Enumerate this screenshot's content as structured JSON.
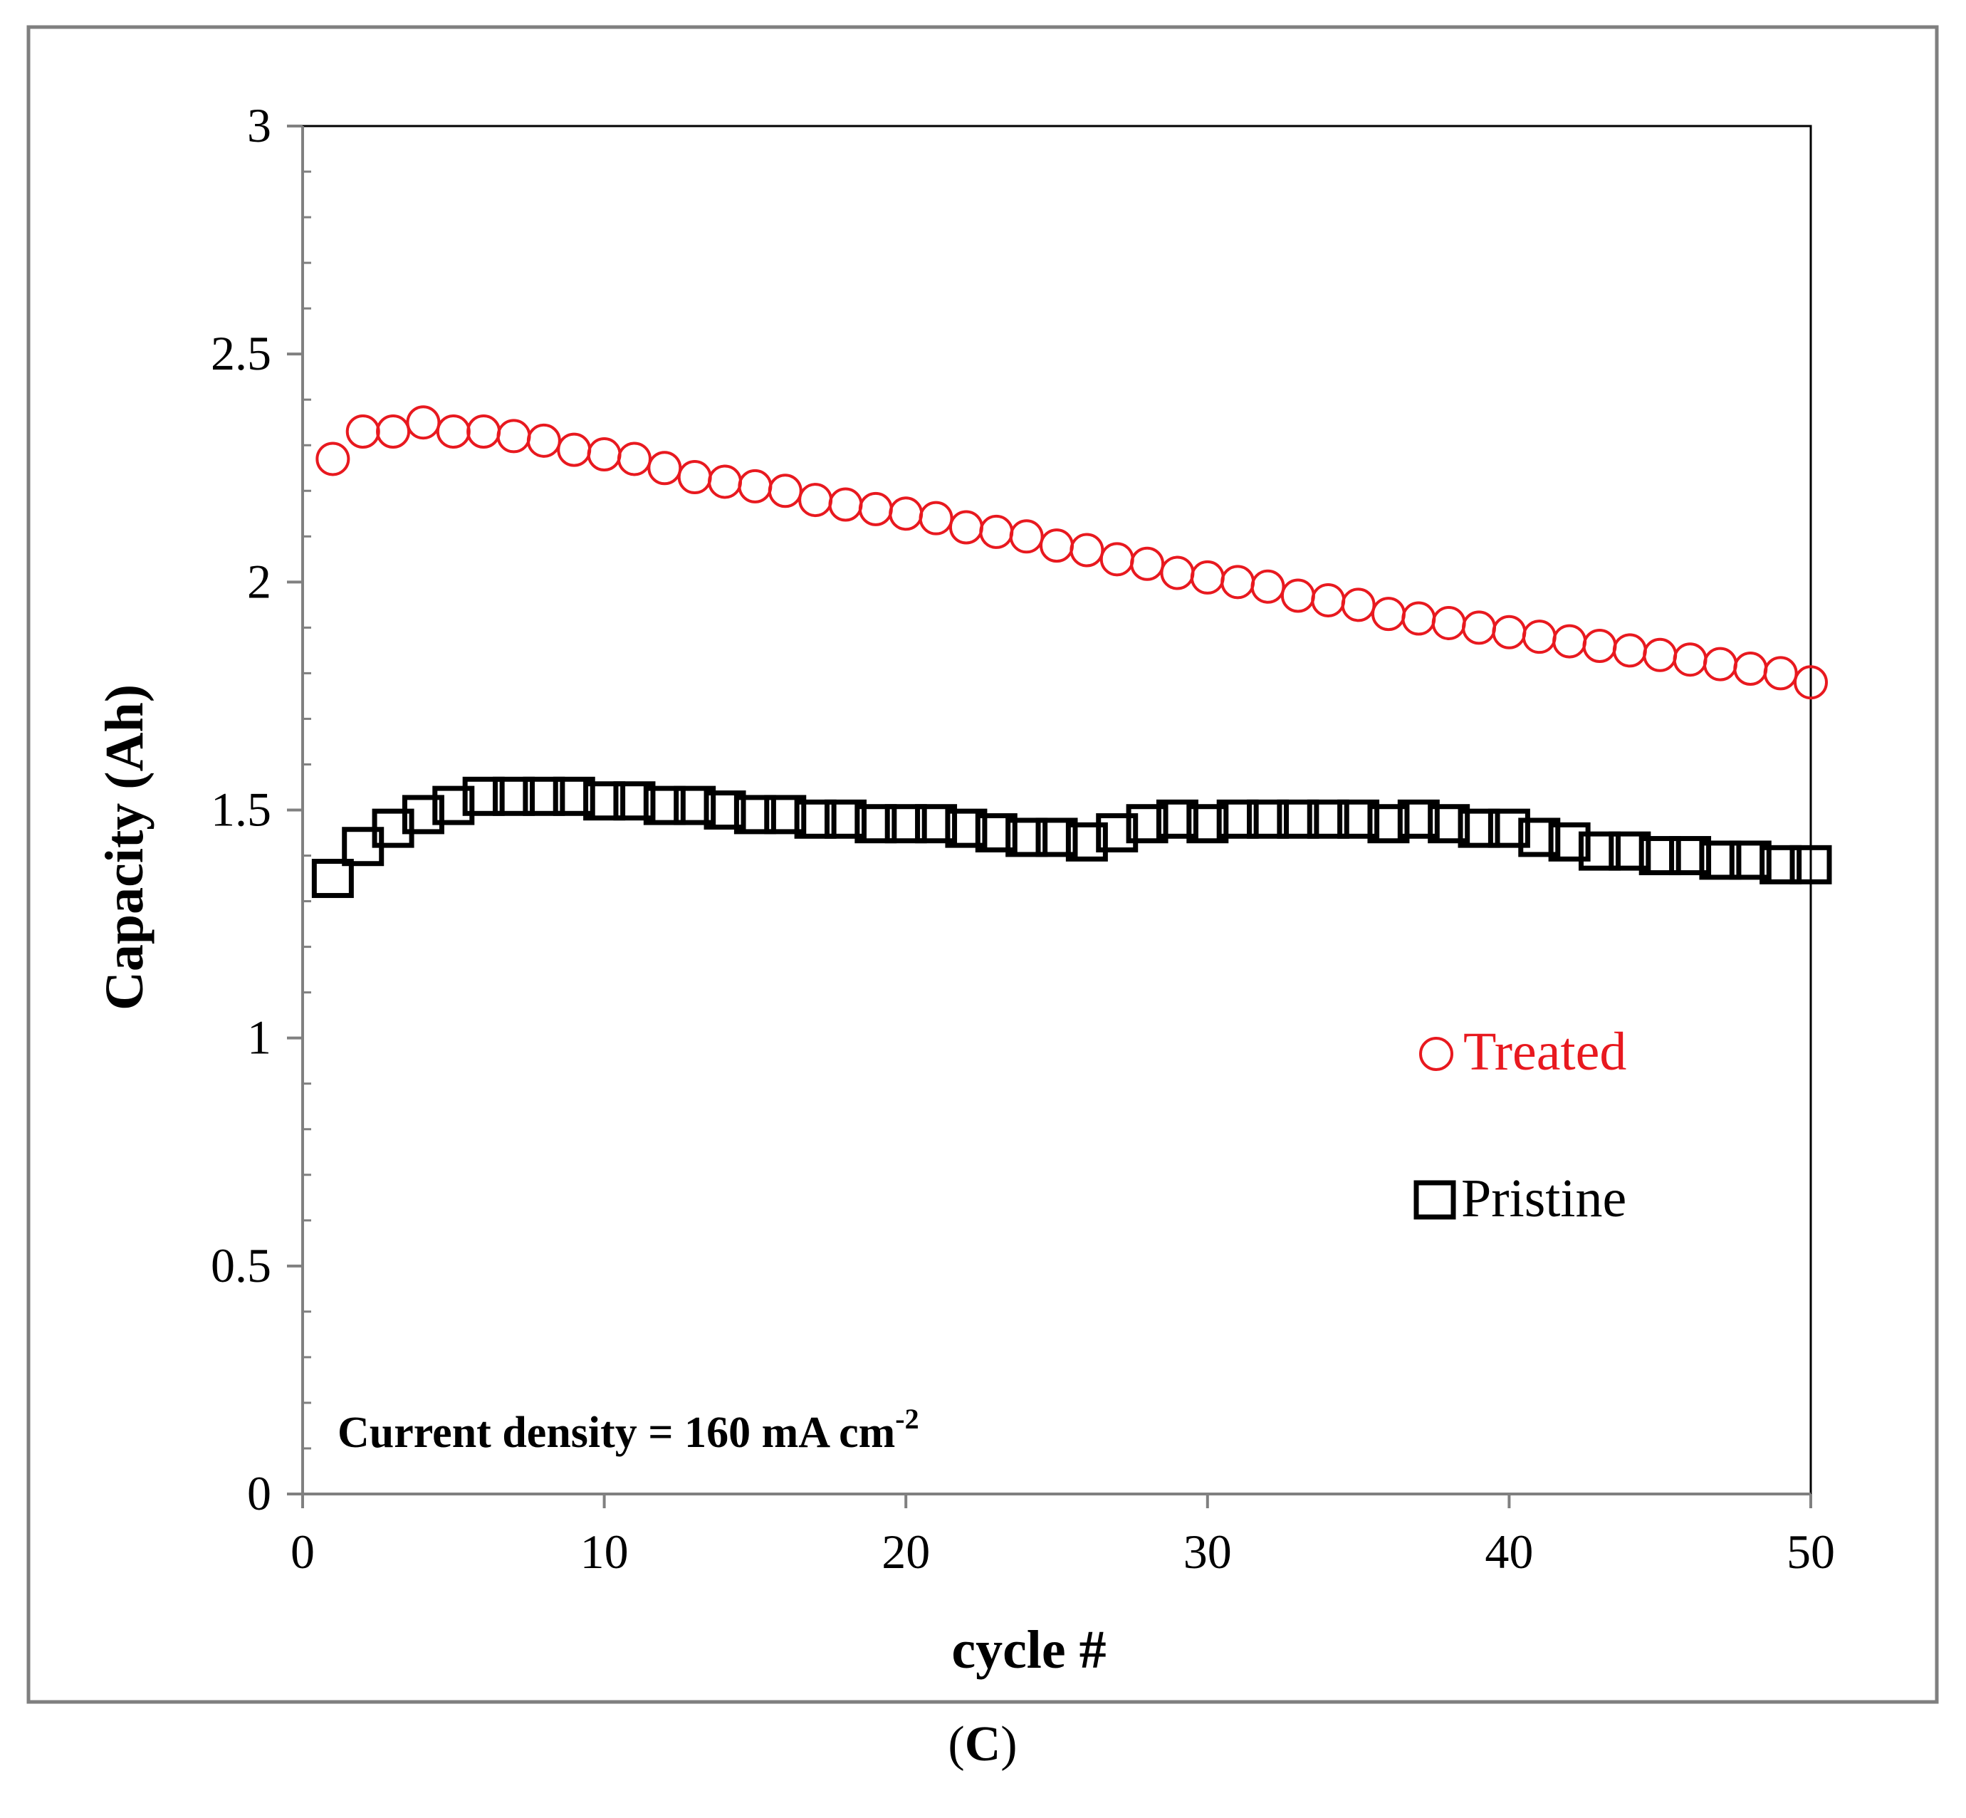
{
  "chart_data": {
    "type": "scatter",
    "title": "",
    "xlabel": "cycle #",
    "ylabel": "Capacity (Ah)",
    "xlim": [
      0,
      50
    ],
    "ylim": [
      0,
      3
    ],
    "x_ticks": [
      "0",
      "10",
      "20",
      "30",
      "40",
      "50"
    ],
    "y_ticks": [
      "0",
      "0.5",
      "1",
      "1.5",
      "2",
      "2.5",
      "3"
    ],
    "grid": false,
    "legend_position": "right-middle",
    "annotation": {
      "text": "Current density = 160 mA cm",
      "superscript": "-2"
    },
    "panel_label": {
      "open": "(",
      "letter": "C",
      "close": ")"
    },
    "x": [
      1,
      2,
      3,
      4,
      5,
      6,
      7,
      8,
      9,
      10,
      11,
      12,
      13,
      14,
      15,
      16,
      17,
      18,
      19,
      20,
      21,
      22,
      23,
      24,
      25,
      26,
      27,
      28,
      29,
      30,
      31,
      32,
      33,
      34,
      35,
      36,
      37,
      38,
      39,
      40,
      41,
      42,
      43,
      44,
      45,
      46,
      47,
      48,
      49,
      50
    ],
    "series": [
      {
        "name": "Treated",
        "marker": "circle",
        "color": "#e8191f",
        "values": [
          2.27,
          2.33,
          2.33,
          2.35,
          2.33,
          2.33,
          2.32,
          2.31,
          2.29,
          2.28,
          2.27,
          2.25,
          2.23,
          2.22,
          2.21,
          2.2,
          2.18,
          2.17,
          2.16,
          2.15,
          2.14,
          2.12,
          2.11,
          2.1,
          2.08,
          2.07,
          2.05,
          2.04,
          2.02,
          2.01,
          2.0,
          1.99,
          1.97,
          1.96,
          1.95,
          1.93,
          1.92,
          1.91,
          1.9,
          1.89,
          1.88,
          1.87,
          1.86,
          1.85,
          1.84,
          1.83,
          1.82,
          1.81,
          1.8,
          1.78
        ]
      },
      {
        "name": "Pristine",
        "marker": "square",
        "color": "#000000",
        "values": [
          1.35,
          1.42,
          1.46,
          1.49,
          1.51,
          1.53,
          1.53,
          1.53,
          1.53,
          1.52,
          1.52,
          1.51,
          1.51,
          1.5,
          1.49,
          1.49,
          1.48,
          1.48,
          1.47,
          1.47,
          1.47,
          1.46,
          1.45,
          1.44,
          1.44,
          1.43,
          1.45,
          1.47,
          1.48,
          1.47,
          1.48,
          1.48,
          1.48,
          1.48,
          1.48,
          1.47,
          1.48,
          1.47,
          1.46,
          1.46,
          1.44,
          1.43,
          1.41,
          1.41,
          1.4,
          1.4,
          1.39,
          1.39,
          1.38,
          1.38
        ]
      }
    ]
  }
}
